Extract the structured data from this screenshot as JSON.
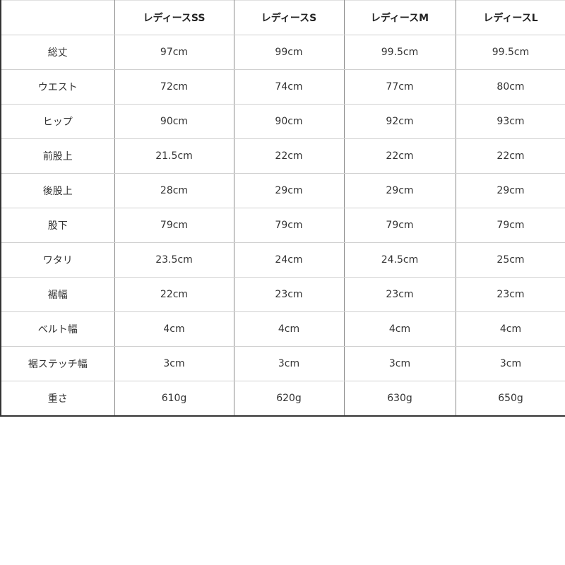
{
  "headers": [
    "",
    "レディースSS",
    "レディースS",
    "レディースM",
    "レディースL"
  ],
  "rows": [
    [
      "総丈",
      "97cm",
      "99cm",
      "99.5cm",
      "99.5cm"
    ],
    [
      "ウエスト",
      "72cm",
      "74cm",
      "77cm",
      "80cm"
    ],
    [
      "ヒップ",
      "90cm",
      "90cm",
      "92cm",
      "93cm"
    ],
    [
      "前股上",
      "21.5cm",
      "22cm",
      "22cm",
      "22cm"
    ],
    [
      "後股上",
      "28cm",
      "29cm",
      "29cm",
      "29cm"
    ],
    [
      "股下",
      "79cm",
      "79cm",
      "79cm",
      "79cm"
    ],
    [
      "ワタリ",
      "23.5cm",
      "24cm",
      "24.5cm",
      "25cm"
    ],
    [
      "裾幅",
      "22cm",
      "23cm",
      "23cm",
      "23cm"
    ],
    [
      "ベルト幅",
      "4cm",
      "4cm",
      "4cm",
      "4cm"
    ],
    [
      "裾ステッチ幅",
      "3cm",
      "3cm",
      "3cm",
      "3cm"
    ],
    [
      "重さ",
      "610g",
      "620g",
      "630g",
      "650g"
    ]
  ]
}
